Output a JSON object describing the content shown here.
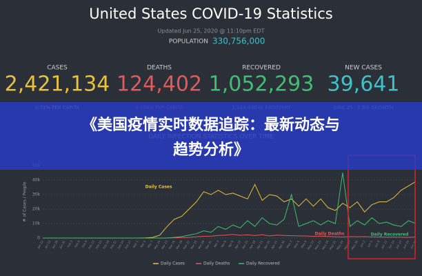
{
  "header": {
    "title": "United States COVID-19 Statistics",
    "updated": "Updated Jun 25, 2020 @ 11:10pm EDT",
    "population_label": "POPULATION",
    "population": "330,756,000"
  },
  "stats": [
    {
      "label": "CASES",
      "value": "2,421,134",
      "sub": "0.73% PER CAPITA",
      "color": "#e8c23a"
    },
    {
      "label": "DEATHS",
      "value": "124,402",
      "sub": "0.038% PER CAPITA",
      "color": "#e05a5a"
    },
    {
      "label": "RECOVERED",
      "value": "1,052,293",
      "sub": "1,244,439 IN RECOVERY",
      "color": "#3fbf6f"
    },
    {
      "label": "NEW CASES",
      "value": "39,641",
      "sub": "JUNE 25 · 1.6% GROWTH",
      "color": "#3fc1c9"
    }
  ],
  "banner": {
    "lines": [
      "《美国疫情实时数据追踪：最新动态与",
      "趋势分析》"
    ]
  },
  "chart_data": {
    "type": "line",
    "title": "DAILY INFECTION STATISTICS OVER TIME",
    "ylabel": "# of Cases / People",
    "categories": [
      "Jan 22",
      "Jan 25",
      "Jan 28",
      "Jan 31",
      "Feb 3",
      "Feb 6",
      "Feb 9",
      "Feb 12",
      "Feb 15",
      "Feb 18",
      "Feb 21",
      "Feb 24",
      "Feb 27",
      "Mar 1",
      "Mar 4",
      "Mar 7",
      "Mar 10",
      "Mar 13",
      "Mar 16",
      "Mar 19",
      "Mar 22",
      "Mar 25",
      "Mar 28",
      "Mar 31",
      "Apr 3",
      "Apr 6",
      "Apr 9",
      "Apr 12",
      "Apr 15",
      "Apr 18",
      "Apr 21",
      "Apr 24",
      "Apr 27",
      "Apr 30",
      "May 3",
      "May 6",
      "May 9",
      "May 12",
      "May 15",
      "May 18",
      "May 21",
      "May 24",
      "May 27",
      "May 30",
      "Jun 2",
      "Jun 5",
      "Jun 8",
      "Jun 11",
      "Jun 14",
      "Jun 17",
      "Jun 20",
      "Jun 23"
    ],
    "series": [
      {
        "name": "Daily Cases",
        "color": "#e8c23a",
        "values": [
          0,
          0,
          0,
          0,
          0,
          0,
          0,
          0,
          0,
          0,
          0,
          0,
          0,
          0,
          100,
          400,
          2000,
          8000,
          13000,
          15000,
          20000,
          25000,
          32000,
          30000,
          33000,
          30000,
          31000,
          29000,
          27000,
          37000,
          26000,
          30000,
          29000,
          25000,
          27000,
          22000,
          27000,
          22000,
          27000,
          21000,
          19000,
          24000,
          21000,
          25000,
          18000,
          23000,
          25000,
          25000,
          28000,
          33000,
          36000,
          39000
        ]
      },
      {
        "name": "Daily Deaths",
        "color": "#e05a5a",
        "values": [
          0,
          0,
          0,
          0,
          0,
          0,
          0,
          0,
          0,
          0,
          0,
          0,
          0,
          0,
          0,
          0,
          10,
          50,
          150,
          300,
          500,
          900,
          1200,
          1300,
          1800,
          2000,
          2500,
          1900,
          2200,
          1700,
          2300,
          1500,
          2000,
          1800,
          1600,
          1500,
          1400,
          1200,
          1300,
          1100,
          900,
          700,
          1000,
          900,
          1000,
          800,
          700,
          600,
          700,
          600,
          500,
          700
        ]
      },
      {
        "name": "Daily Recovered",
        "color": "#3fbf6f",
        "values": [
          0,
          0,
          0,
          0,
          0,
          0,
          0,
          0,
          0,
          0,
          0,
          0,
          0,
          0,
          0,
          0,
          0,
          0,
          500,
          1000,
          2000,
          3000,
          5000,
          4000,
          8000,
          6000,
          9000,
          7000,
          12000,
          8000,
          14000,
          10000,
          9000,
          13000,
          30000,
          8000,
          10000,
          12000,
          9000,
          12000,
          10000,
          45000,
          8000,
          12000,
          9000,
          14000,
          10000,
          11000,
          9000,
          8000,
          12000,
          10000
        ]
      }
    ],
    "ylim": [
      0,
      50000
    ],
    "yticks": [
      0,
      {
        "value": 10000,
        "label": "10k"
      },
      {
        "value": 20000,
        "label": "20k"
      },
      {
        "value": 30000,
        "label": "30k"
      },
      {
        "value": 40000,
        "label": "40k"
      },
      {
        "value": 50000,
        "label": "50k"
      }
    ],
    "grid": true
  }
}
